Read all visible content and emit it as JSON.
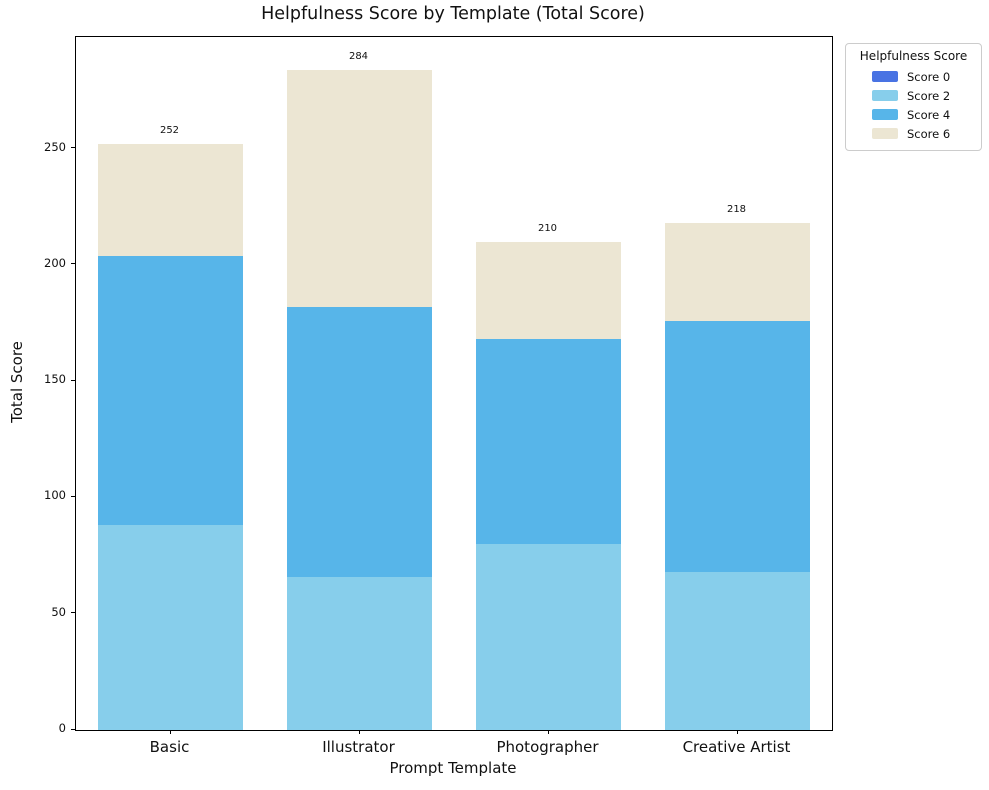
{
  "chart_data": {
    "type": "bar",
    "stacked": true,
    "title": "Helpfulness Score by Template (Total Score)",
    "xlabel": "Prompt Template",
    "ylabel": "Total Score",
    "categories": [
      "Basic",
      "Illustrator",
      "Photographer",
      "Creative Artist"
    ],
    "series": [
      {
        "name": "Score 0",
        "color": "#4973e3",
        "values": [
          0,
          0,
          0,
          0
        ]
      },
      {
        "name": "Score 2",
        "color": "#87ceeb",
        "values": [
          88,
          66,
          80,
          68
        ]
      },
      {
        "name": "Score 4",
        "color": "#57b5e9",
        "values": [
          116,
          116,
          88,
          108
        ]
      },
      {
        "name": "Score 6",
        "color": "#ece6d3",
        "values": [
          48,
          102,
          42,
          42
        ]
      }
    ],
    "totals": [
      252,
      284,
      210,
      218
    ],
    "ylim": [
      0,
      298
    ],
    "yticks": [
      0,
      50,
      100,
      150,
      200,
      250
    ],
    "grid": false,
    "legend": {
      "title": "Helpfulness Score",
      "entries": [
        "Score 0",
        "Score 2",
        "Score 4",
        "Score 6"
      ],
      "position": "upper-right-outside"
    }
  }
}
